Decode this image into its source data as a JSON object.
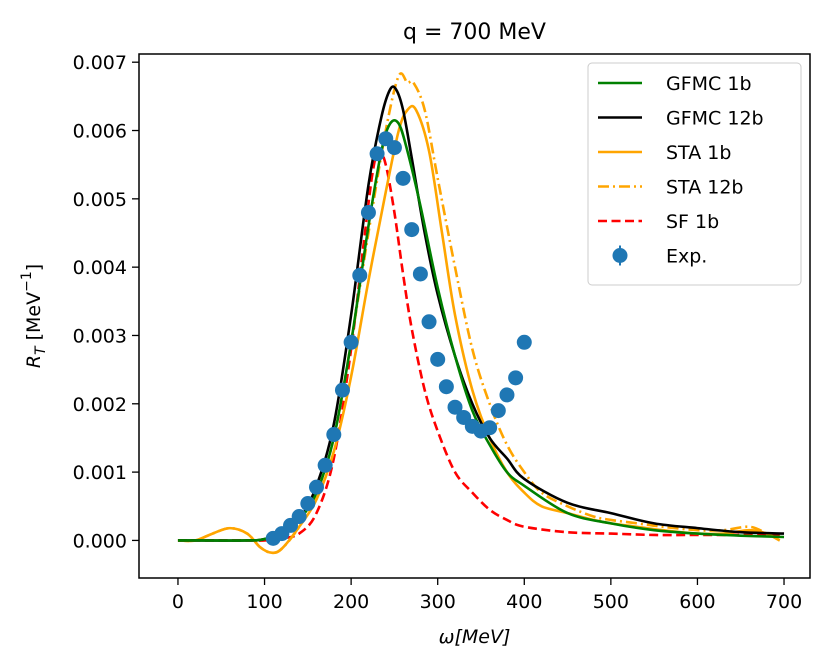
{
  "chart_data": {
    "type": "line",
    "title": "q = 700 MeV",
    "xlabel": "ω[MeV]",
    "ylabel_main": "R",
    "ylabel_sub": "T",
    "ylabel_unit_prefix": "[MeV",
    "ylabel_unit_exp": "−1",
    "ylabel_unit_suffix": "]",
    "xlim": [
      -45,
      730
    ],
    "ylim": [
      -0.00055,
      0.00712
    ],
    "xticks": [
      0,
      100,
      200,
      300,
      400,
      500,
      600,
      700
    ],
    "xtick_labels": [
      "0",
      "100",
      "200",
      "300",
      "400",
      "500",
      "600",
      "700"
    ],
    "yticks": [
      0.0,
      0.001,
      0.002,
      0.003,
      0.004,
      0.005,
      0.006,
      0.007
    ],
    "ytick_labels": [
      "0.000",
      "0.001",
      "0.002",
      "0.003",
      "0.004",
      "0.005",
      "0.006",
      "0.007"
    ],
    "legend_position": "top-right",
    "series": [
      {
        "name": "GFMC 1b",
        "color": "#008000",
        "style": "solid",
        "x": [
          0,
          80,
          100,
          120,
          140,
          160,
          180,
          200,
          220,
          235,
          245,
          255,
          265,
          280,
          300,
          320,
          340,
          360,
          380,
          400,
          450,
          500,
          550,
          600,
          650,
          700
        ],
        "y": [
          0.0,
          0.0,
          2e-05,
          0.0001,
          0.0003,
          0.0007,
          0.0015,
          0.0029,
          0.0046,
          0.0057,
          0.0061,
          0.0061,
          0.0057,
          0.0049,
          0.0037,
          0.0027,
          0.0019,
          0.0014,
          0.001,
          0.0008,
          0.0004,
          0.00025,
          0.00015,
          0.0001,
          7e-05,
          5e-05
        ]
      },
      {
        "name": "GFMC 12b",
        "color": "#000000",
        "style": "solid",
        "x": [
          0,
          80,
          100,
          120,
          140,
          160,
          180,
          200,
          220,
          235,
          245,
          252,
          260,
          270,
          285,
          300,
          320,
          340,
          360,
          380,
          400,
          450,
          500,
          550,
          600,
          650,
          700
        ],
        "y": [
          0.0,
          0.0,
          2e-05,
          0.0001,
          0.0003,
          0.0008,
          0.0017,
          0.0033,
          0.0052,
          0.0062,
          0.0066,
          0.0066,
          0.0063,
          0.0056,
          0.0045,
          0.0036,
          0.0027,
          0.002,
          0.0015,
          0.0012,
          0.0009,
          0.00055,
          0.0004,
          0.00025,
          0.00018,
          0.00012,
          0.0001
        ]
      },
      {
        "name": "STA 1b",
        "color": "#FFA500",
        "style": "solid",
        "x": [
          0,
          20,
          40,
          60,
          80,
          95,
          108,
          120,
          140,
          160,
          180,
          200,
          220,
          240,
          255,
          265,
          275,
          290,
          305,
          320,
          340,
          360,
          380,
          400,
          420,
          450,
          480,
          500,
          530,
          560,
          600,
          630,
          660,
          680,
          695
        ],
        "y": [
          0.0,
          0.0,
          0.0001,
          0.00018,
          0.0001,
          -0.0001,
          -0.00018,
          -0.00012,
          0.0002,
          0.0006,
          0.0013,
          0.0024,
          0.0038,
          0.0051,
          0.006,
          0.0063,
          0.0063,
          0.0057,
          0.0045,
          0.0033,
          0.0022,
          0.0015,
          0.001,
          0.0007,
          0.0005,
          0.0004,
          0.0003,
          0.00025,
          0.0002,
          0.00015,
          0.0001,
          0.0001,
          0.00015,
          0.0001,
          0.0
        ]
      },
      {
        "name": "STA 12b",
        "color": "#FFA500",
        "style": "dashdot",
        "x": [
          0,
          20,
          40,
          60,
          80,
          95,
          108,
          120,
          140,
          160,
          180,
          200,
          220,
          240,
          255,
          265,
          272,
          285,
          300,
          320,
          340,
          360,
          380,
          400,
          420,
          450,
          480,
          500,
          530,
          560,
          600,
          630,
          660,
          680,
          695
        ],
        "y": [
          0.0,
          0.0,
          0.0001,
          0.00018,
          0.0001,
          -0.0001,
          -0.00018,
          -0.00012,
          0.0002,
          0.0007,
          0.0015,
          0.0029,
          0.0045,
          0.006,
          0.0068,
          0.0067,
          0.0067,
          0.0063,
          0.0053,
          0.004,
          0.0028,
          0.002,
          0.0014,
          0.001,
          0.0007,
          0.0005,
          0.00035,
          0.0003,
          0.00025,
          0.0002,
          0.00015,
          0.00015,
          0.0002,
          0.0001,
          0.0
        ]
      },
      {
        "name": "SF 1b",
        "color": "#FF0000",
        "style": "dashed",
        "x": [
          0,
          80,
          100,
          120,
          140,
          160,
          180,
          200,
          215,
          225,
          232,
          240,
          250,
          260,
          270,
          285,
          300,
          320,
          340,
          360,
          380,
          400,
          450,
          500,
          550,
          600,
          650,
          700
        ],
        "y": [
          0.0,
          0.0,
          0.0,
          3e-05,
          0.0001,
          0.0004,
          0.0012,
          0.0028,
          0.0044,
          0.0054,
          0.0057,
          0.0055,
          0.0048,
          0.0039,
          0.0031,
          0.0022,
          0.0016,
          0.001,
          0.0007,
          0.00045,
          0.0003,
          0.0002,
          0.00012,
          0.0001,
          8e-05,
          8e-05,
          8e-05,
          8e-05
        ]
      }
    ],
    "scatter": {
      "name": "Exp.",
      "color": "#1f77b4",
      "x": [
        110,
        120,
        130,
        140,
        150,
        160,
        170,
        180,
        190,
        200,
        210,
        220,
        230,
        240,
        250,
        260,
        270,
        280,
        290,
        300,
        310,
        320,
        330,
        340,
        350,
        360,
        370,
        380,
        390,
        400
      ],
      "y": [
        3e-05,
        0.0001,
        0.00022,
        0.00035,
        0.00054,
        0.00078,
        0.0011,
        0.00155,
        0.0022,
        0.0029,
        0.00388,
        0.0048,
        0.00566,
        0.00588,
        0.00575,
        0.0053,
        0.00455,
        0.0039,
        0.0032,
        0.00265,
        0.00225,
        0.00195,
        0.0018,
        0.00167,
        0.0016,
        0.00165,
        0.0019,
        0.00213,
        0.00238,
        0.0029
      ]
    }
  }
}
